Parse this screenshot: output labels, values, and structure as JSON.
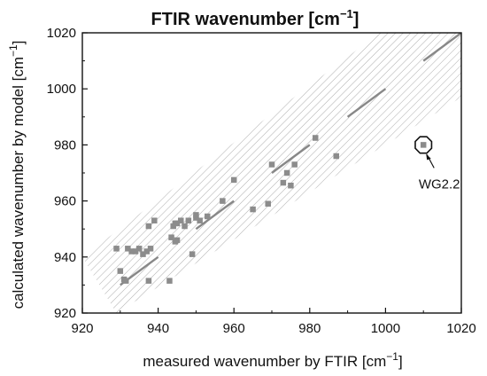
{
  "chart_data": {
    "type": "scatter",
    "title": "FTIR wavenumber [cm",
    "title_sup": "−1",
    "title_end": "]",
    "xlabel": "measured wavenumber by FTIR [cm",
    "xlabel_sup": "−1",
    "xlabel_end": "]",
    "ylabel": "calculated wavenumber by model [cm",
    "ylabel_sup": "−1",
    "ylabel_end": "]",
    "xlim": [
      920,
      1020
    ],
    "ylim": [
      920,
      1020
    ],
    "xticks": [
      920,
      940,
      960,
      980,
      1000,
      1020
    ],
    "yticks": [
      920,
      940,
      960,
      980,
      1000,
      1020
    ],
    "grid": false,
    "band": {
      "description_values": {
        "lower": [
          [
            929,
            920
          ],
          [
            1020,
            997
          ]
        ],
        "upper": [
          [
            920,
            940
          ],
          [
            1020,
            1042
          ]
        ]
      },
      "fill": "diagonal-hatch"
    },
    "segments": [
      {
        "x": [
          930,
          940
        ],
        "y": [
          930,
          940
        ]
      },
      {
        "x": [
          950,
          960
        ],
        "y": [
          950,
          960
        ]
      },
      {
        "x": [
          970,
          980
        ],
        "y": [
          970,
          980
        ]
      },
      {
        "x": [
          990,
          1000
        ],
        "y": [
          990,
          1000
        ]
      },
      {
        "x": [
          1010,
          1020
        ],
        "y": [
          1010,
          1020
        ]
      }
    ],
    "series": [
      {
        "x": [
          929,
          930,
          931,
          931.5,
          932,
          933,
          934,
          935,
          936,
          937,
          937.5,
          938,
          939,
          937.5,
          943,
          943.5,
          944,
          944.5,
          944.5,
          945,
          945,
          946,
          947,
          948,
          949,
          950,
          950,
          951,
          953,
          957,
          960,
          965,
          969,
          970,
          973,
          974,
          975,
          976,
          981.5,
          987,
          1010
        ],
        "y": [
          943,
          935,
          932,
          931.5,
          943,
          942,
          942,
          943,
          941,
          942,
          951,
          943,
          953,
          931.5,
          931.5,
          947,
          951,
          952,
          945.5,
          952,
          946,
          953,
          951,
          953,
          941,
          954,
          955,
          953,
          954.5,
          960,
          967.5,
          957,
          959,
          973,
          966.5,
          970,
          965.5,
          973,
          982.5,
          976,
          980
        ]
      }
    ],
    "annotation": {
      "text": "WG2.2",
      "x": 1010,
      "y": 980
    },
    "colors": {
      "marker": "#8c8c8c",
      "segment": "#888888",
      "hatch": "#9a9a9a",
      "axis": "#111111"
    }
  }
}
